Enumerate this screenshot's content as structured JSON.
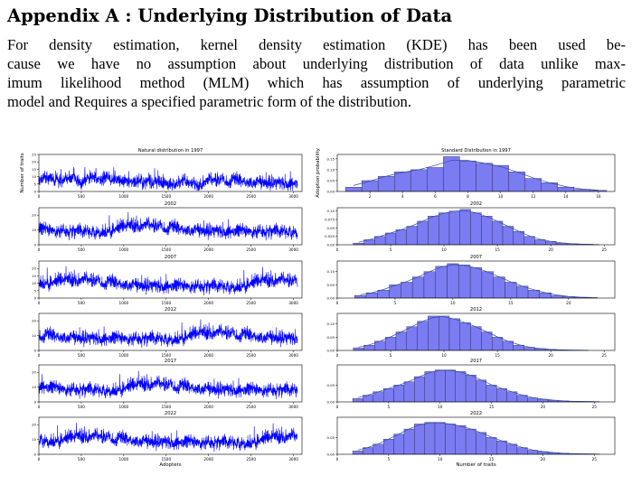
{
  "heading": "Appendix A : Underlying Distribution of Data",
  "paragraph_lines": [
    "For density estimation, kernel density estimation (KDE) has been used be-",
    "cause we have no assumption about underlying distribution of data unlike max-",
    "imum likelihood method (MLM) which has assumption of underlying parametric",
    "model and Requires a specified parametric form of the distribution."
  ],
  "chart_data": [
    {
      "type": "line",
      "panel": "left",
      "title": "Natural distribution in 1997",
      "year": "1997",
      "ylabel": "Number of traits",
      "xlabel": "",
      "xlim": [
        0,
        3100
      ],
      "ylim": [
        0,
        25
      ],
      "xticks": [
        0,
        500,
        1000,
        1500,
        2000,
        2500,
        3000
      ],
      "yticks": [
        0,
        5,
        10,
        15,
        20,
        25
      ],
      "series_color": "#0000ff",
      "n_points": 3050,
      "mean": 7.5
    },
    {
      "type": "bar",
      "panel": "right",
      "title": "Standard Distribution in 1997",
      "year": "1997",
      "ylabel": "Adoption probability",
      "xlabel": "",
      "xlim": [
        0,
        17
      ],
      "ylim": [
        0,
        0.17
      ],
      "xticks": [
        2,
        4,
        6,
        8,
        10,
        12,
        14,
        16
      ],
      "yticks": [
        0.0,
        0.05,
        0.1,
        0.15
      ],
      "categories": [
        1,
        2,
        3,
        4,
        5,
        6,
        7,
        8,
        9,
        10,
        11,
        12,
        13,
        14,
        15,
        16
      ],
      "values": [
        0.02,
        0.05,
        0.07,
        0.09,
        0.1,
        0.11,
        0.16,
        0.14,
        0.13,
        0.12,
        0.09,
        0.06,
        0.04,
        0.02,
        0.01,
        0.005
      ],
      "kde": true
    },
    {
      "type": "line",
      "panel": "left",
      "title": "2002",
      "year": "2002",
      "xlabel": "",
      "xlim": [
        0,
        3100
      ],
      "ylim": [
        0,
        25
      ],
      "xticks": [
        0,
        500,
        1000,
        1500,
        2000,
        2500,
        3000
      ],
      "yticks": [
        0,
        10,
        20
      ],
      "series_color": "#0000ff",
      "n_points": 3050,
      "mean": 11
    },
    {
      "type": "bar",
      "panel": "right",
      "title": "2002",
      "year": "2002",
      "xlabel": "",
      "xlim": [
        0,
        26
      ],
      "ylim": [
        0,
        0.11
      ],
      "xticks": [
        0,
        5,
        10,
        15,
        20,
        25
      ],
      "yticks": [
        0.0,
        0.025,
        0.05,
        0.075,
        0.1
      ],
      "categories": [
        2,
        3,
        4,
        5,
        6,
        7,
        8,
        9,
        10,
        11,
        12,
        13,
        14,
        15,
        16,
        17,
        18,
        19,
        20,
        21,
        22,
        23,
        24
      ],
      "values": [
        0.005,
        0.015,
        0.025,
        0.035,
        0.045,
        0.055,
        0.07,
        0.085,
        0.095,
        0.1,
        0.105,
        0.095,
        0.085,
        0.07,
        0.055,
        0.04,
        0.025,
        0.015,
        0.01,
        0.005,
        0.003,
        0.002,
        0.001
      ],
      "kde": true
    },
    {
      "type": "line",
      "panel": "left",
      "title": "2007",
      "year": "2007",
      "xlabel": "",
      "xlim": [
        0,
        3100
      ],
      "ylim": [
        0,
        25
      ],
      "xticks": [
        0,
        500,
        1000,
        1500,
        2000,
        2500,
        3000
      ],
      "yticks": [
        0,
        5,
        10,
        15,
        20
      ],
      "series_color": "#0000ff",
      "n_points": 3050,
      "mean": 10
    },
    {
      "type": "bar",
      "panel": "right",
      "title": "2007",
      "year": "2007",
      "xlabel": "",
      "xlim": [
        0,
        24
      ],
      "ylim": [
        0,
        0.14
      ],
      "xticks": [
        0,
        5,
        10,
        15,
        20
      ],
      "yticks": [
        0.0,
        0.05,
        0.1
      ],
      "categories": [
        2,
        3,
        4,
        5,
        6,
        7,
        8,
        9,
        10,
        11,
        12,
        13,
        14,
        15,
        16,
        17,
        18,
        19,
        20,
        21,
        22
      ],
      "values": [
        0.01,
        0.02,
        0.03,
        0.05,
        0.06,
        0.08,
        0.1,
        0.12,
        0.13,
        0.125,
        0.115,
        0.1,
        0.08,
        0.06,
        0.045,
        0.03,
        0.02,
        0.01,
        0.006,
        0.003,
        0.002
      ],
      "kde": true
    },
    {
      "type": "line",
      "panel": "left",
      "title": "2012",
      "year": "2012",
      "xlabel": "",
      "xlim": [
        0,
        3100
      ],
      "ylim": [
        0,
        25
      ],
      "xticks": [
        0,
        500,
        1000,
        1500,
        2000,
        2500,
        3000
      ],
      "yticks": [
        0,
        10,
        20
      ],
      "series_color": "#0000ff",
      "n_points": 3050,
      "mean": 10
    },
    {
      "type": "bar",
      "panel": "right",
      "title": "2012",
      "year": "2012",
      "xlabel": "",
      "xlim": [
        0,
        26
      ],
      "ylim": [
        0,
        0.14
      ],
      "xticks": [
        0,
        5,
        10,
        15,
        20,
        25
      ],
      "yticks": [
        0.0,
        0.05,
        0.1
      ],
      "categories": [
        2,
        3,
        4,
        5,
        6,
        7,
        8,
        9,
        10,
        11,
        12,
        13,
        14,
        15,
        16,
        17,
        18,
        19,
        20,
        21,
        22,
        23
      ],
      "values": [
        0.01,
        0.02,
        0.035,
        0.05,
        0.07,
        0.09,
        0.11,
        0.13,
        0.13,
        0.12,
        0.105,
        0.09,
        0.07,
        0.05,
        0.035,
        0.02,
        0.012,
        0.007,
        0.004,
        0.002,
        0.001,
        0.001
      ],
      "kde": true
    },
    {
      "type": "line",
      "panel": "left",
      "title": "2017",
      "year": "2017",
      "xlabel": "",
      "xlim": [
        0,
        3100
      ],
      "ylim": [
        0,
        25
      ],
      "xticks": [
        0,
        500,
        1000,
        1500,
        2000,
        2500,
        3000
      ],
      "yticks": [
        0,
        10,
        20
      ],
      "series_color": "#0000ff",
      "n_points": 3050,
      "mean": 10
    },
    {
      "type": "bar",
      "panel": "right",
      "title": "2017",
      "year": "2017",
      "xlabel": "",
      "xlim": [
        0,
        27
      ],
      "ylim": [
        0,
        0.11
      ],
      "xticks": [
        0,
        5,
        10,
        15,
        20,
        25
      ],
      "yticks": [
        0.0,
        0.05
      ],
      "categories": [
        2,
        3,
        4,
        5,
        6,
        7,
        8,
        9,
        10,
        11,
        12,
        13,
        14,
        15,
        16,
        17,
        18,
        19,
        20,
        21,
        22,
        23,
        24,
        25
      ],
      "values": [
        0.01,
        0.02,
        0.03,
        0.04,
        0.05,
        0.06,
        0.075,
        0.09,
        0.095,
        0.095,
        0.09,
        0.08,
        0.065,
        0.05,
        0.04,
        0.03,
        0.02,
        0.012,
        0.008,
        0.005,
        0.003,
        0.002,
        0.001,
        0.001
      ],
      "kde": true
    },
    {
      "type": "line",
      "panel": "left",
      "title": "2022",
      "year": "2022",
      "xlabel": "Adopters",
      "xlim": [
        0,
        3100
      ],
      "ylim": [
        0,
        25
      ],
      "xticks": [
        0,
        500,
        1000,
        1500,
        2000,
        2500,
        3000
      ],
      "yticks": [
        0,
        10,
        20
      ],
      "series_color": "#0000ff",
      "n_points": 3050,
      "mean": 10
    },
    {
      "type": "bar",
      "panel": "right",
      "title": "2022",
      "year": "2022",
      "xlabel": "Number of traits",
      "xlim": [
        0,
        27
      ],
      "ylim": [
        0,
        0.11
      ],
      "xticks": [
        0,
        5,
        10,
        15,
        20,
        25
      ],
      "yticks": [
        0.0,
        0.05
      ],
      "categories": [
        2,
        3,
        4,
        5,
        6,
        7,
        8,
        9,
        10,
        11,
        12,
        13,
        14,
        15,
        16,
        17,
        18,
        19,
        20,
        21,
        22,
        23,
        24,
        25
      ],
      "values": [
        0.01,
        0.02,
        0.03,
        0.045,
        0.06,
        0.075,
        0.09,
        0.095,
        0.095,
        0.09,
        0.085,
        0.075,
        0.065,
        0.05,
        0.04,
        0.03,
        0.02,
        0.012,
        0.008,
        0.005,
        0.003,
        0.002,
        0.001,
        0.001
      ],
      "kde": true
    }
  ]
}
